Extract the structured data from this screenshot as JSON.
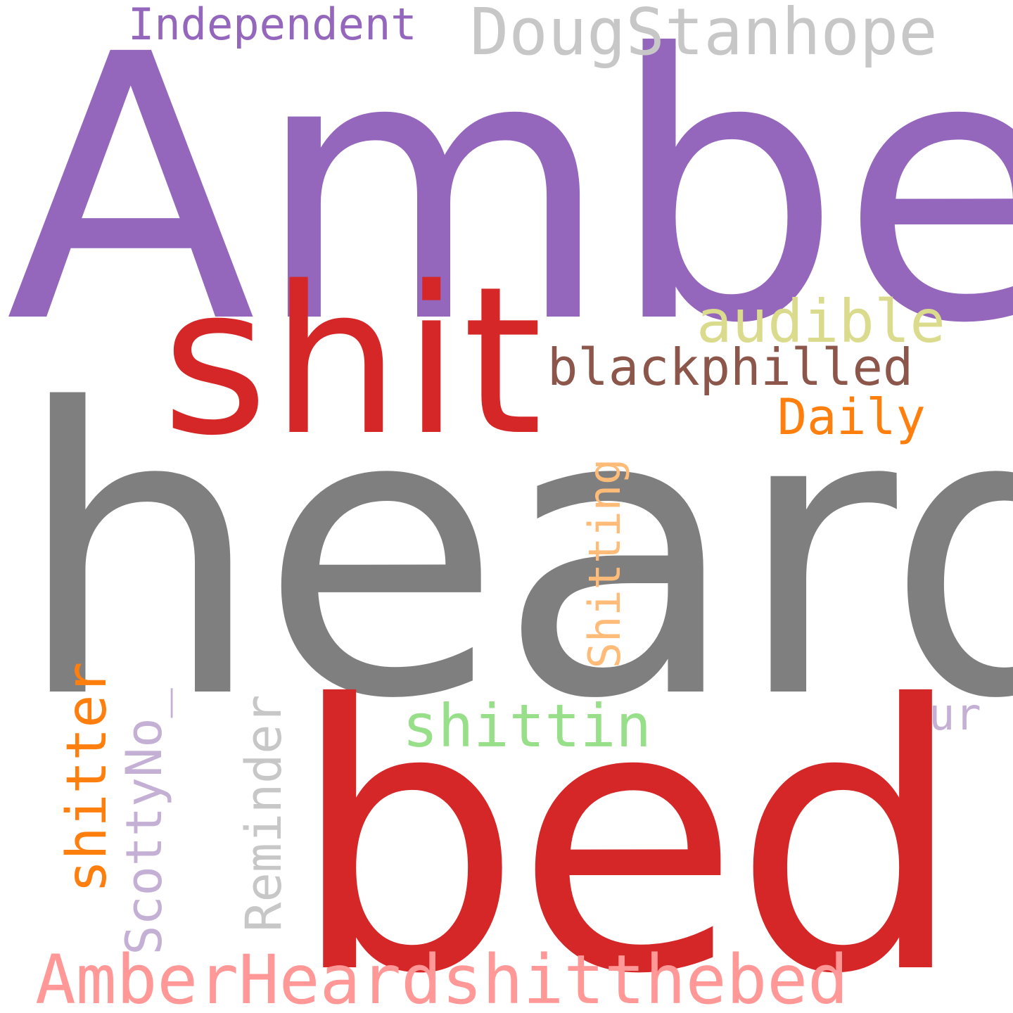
{
  "words": {
    "amber": {
      "text": "Amber",
      "color": "#9467bd"
    },
    "heard": {
      "text": "heard",
      "color": "#7f7f7f"
    },
    "bed": {
      "text": "bed",
      "color": "#d62728"
    },
    "shit": {
      "text": "shit",
      "color": "#d62728"
    },
    "doug_stanhope": {
      "text": "DougStanhope",
      "color": "#c7c7c7"
    },
    "independent": {
      "text": "Independent",
      "color": "#9467bd"
    },
    "audible": {
      "text": "audible",
      "color": "#dbdb8d"
    },
    "blackphilled": {
      "text": "blackphilled",
      "color": "#8c564b"
    },
    "daily": {
      "text": "Daily",
      "color": "#ff7f0e"
    },
    "shitting": {
      "text": "Shitting",
      "color": "#ffbb78"
    },
    "shittin": {
      "text": "shittin",
      "color": "#98df8a"
    },
    "ur": {
      "text": "ur",
      "color": "#c5b0d5"
    },
    "shitter": {
      "text": "shitter",
      "color": "#ff7f0e"
    },
    "scotty_no": {
      "text": "ScottyNo_",
      "color": "#c5b0d5"
    },
    "reminder": {
      "text": "Reminder",
      "color": "#c7c7c7"
    },
    "amber_heard_shit_the_bed": {
      "text": "AmberHeardshitthebed",
      "color": "#ff9896"
    }
  }
}
